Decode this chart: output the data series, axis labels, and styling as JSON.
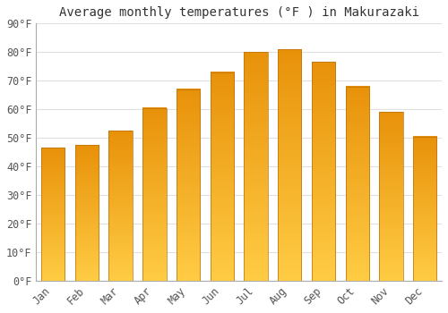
{
  "title": "Average monthly temperatures (°F ) in Makurazaki",
  "months": [
    "Jan",
    "Feb",
    "Mar",
    "Apr",
    "May",
    "Jun",
    "Jul",
    "Aug",
    "Sep",
    "Oct",
    "Nov",
    "Dec"
  ],
  "values": [
    46.5,
    47.5,
    52.5,
    60.5,
    67.0,
    73.0,
    80.0,
    81.0,
    76.5,
    68.0,
    59.0,
    50.5
  ],
  "bar_color_dark": "#E8920A",
  "bar_color_light": "#FFCC44",
  "bar_border_color": "#B87010",
  "ylim": [
    0,
    90
  ],
  "yticks": [
    0,
    10,
    20,
    30,
    40,
    50,
    60,
    70,
    80,
    90
  ],
  "ytick_labels": [
    "0°F",
    "10°F",
    "20°F",
    "30°F",
    "40°F",
    "50°F",
    "60°F",
    "70°F",
    "80°F",
    "90°F"
  ],
  "background_color": "#FFFFFF",
  "grid_color": "#E0E0E0",
  "title_fontsize": 10,
  "tick_fontsize": 8.5,
  "font_family": "monospace",
  "bar_width": 0.7
}
